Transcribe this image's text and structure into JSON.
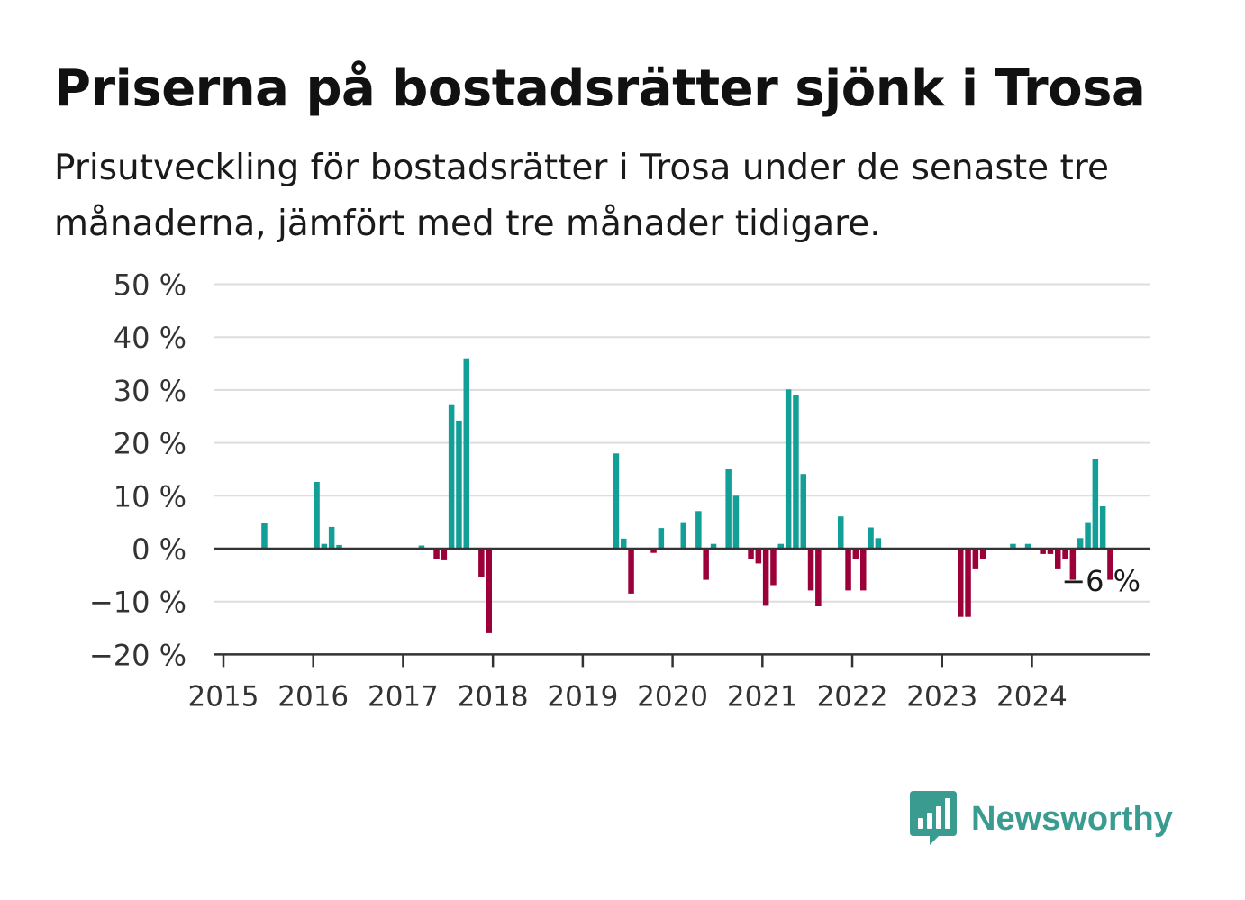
{
  "title": "Priserna på bostadsrätter sjönk i Trosa",
  "subtitle": "Prisutveckling för bostadsrätter i Trosa under de senaste tre månaderna, jämfört med tre månader tidigare.",
  "brand": {
    "name": "Newsworthy",
    "color": "#3a9c91",
    "icon": "bar-chart-speech-bubble-icon"
  },
  "colors": {
    "positive": "#119f98",
    "negative": "#9b0039",
    "grid": "#dddddd",
    "axis": "#333333"
  },
  "chart_data": {
    "type": "bar",
    "xlabel": "",
    "ylabel": "",
    "ylim": [
      -20,
      50
    ],
    "yticks": [
      -20,
      -10,
      0,
      10,
      20,
      30,
      40,
      50
    ],
    "ytick_labels": [
      "−20 %",
      "−10 %",
      "0 %",
      "10 %",
      "20 %",
      "30 %",
      "40 %",
      "50 %"
    ],
    "xticks": [
      "2015",
      "2016",
      "2017",
      "2018",
      "2019",
      "2020",
      "2021",
      "2022",
      "2023",
      "2024"
    ],
    "grid": true,
    "legend": "none",
    "x_start": "2015-01",
    "months": [
      "2015-01",
      "2015-02",
      "2015-03",
      "2015-04",
      "2015-05",
      "2015-06",
      "2015-07",
      "2015-08",
      "2015-09",
      "2015-10",
      "2015-11",
      "2015-12",
      "2016-01",
      "2016-02",
      "2016-03",
      "2016-04",
      "2016-05",
      "2016-06",
      "2016-07",
      "2016-08",
      "2016-09",
      "2016-10",
      "2016-11",
      "2016-12",
      "2017-01",
      "2017-02",
      "2017-03",
      "2017-04",
      "2017-05",
      "2017-06",
      "2017-07",
      "2017-08",
      "2017-09",
      "2017-10",
      "2017-11",
      "2017-12",
      "2018-01",
      "2018-02",
      "2018-03",
      "2018-04",
      "2018-05",
      "2018-06",
      "2018-07",
      "2018-08",
      "2018-09",
      "2018-10",
      "2018-11",
      "2018-12",
      "2019-01",
      "2019-02",
      "2019-03",
      "2019-04",
      "2019-05",
      "2019-06",
      "2019-07",
      "2019-08",
      "2019-09",
      "2019-10",
      "2019-11",
      "2019-12",
      "2020-01",
      "2020-02",
      "2020-03",
      "2020-04",
      "2020-05",
      "2020-06",
      "2020-07",
      "2020-08",
      "2020-09",
      "2020-10",
      "2020-11",
      "2020-12",
      "2021-01",
      "2021-02",
      "2021-03",
      "2021-04",
      "2021-05",
      "2021-06",
      "2021-07",
      "2021-08",
      "2021-09",
      "2021-10",
      "2021-11",
      "2021-12",
      "2022-01",
      "2022-02",
      "2022-03",
      "2022-04",
      "2022-05",
      "2022-06",
      "2022-07",
      "2022-08",
      "2022-09",
      "2022-10",
      "2022-11",
      "2022-12",
      "2023-01",
      "2023-02",
      "2023-03",
      "2023-04",
      "2023-05",
      "2023-06",
      "2023-07",
      "2023-08",
      "2023-09",
      "2023-10",
      "2023-11",
      "2023-12",
      "2024-01",
      "2024-02",
      "2024-03",
      "2024-04",
      "2024-05",
      "2024-06",
      "2024-07",
      "2024-08",
      "2024-09",
      "2024-10",
      "2024-11",
      "2024-12"
    ],
    "values": [
      0,
      0,
      0,
      0,
      0,
      4.8,
      0,
      0,
      0,
      0,
      0,
      0,
      12.6,
      0.9,
      4.1,
      0.7,
      0,
      0,
      0,
      0,
      0,
      0,
      0,
      0,
      0,
      0,
      0.6,
      0,
      -1.9,
      -2.2,
      27.3,
      24.2,
      36.0,
      0,
      -5.3,
      -16.0,
      0,
      0,
      0,
      0,
      0,
      0,
      0,
      0,
      0,
      0,
      0,
      0,
      0,
      0,
      0,
      0,
      18.0,
      1.9,
      -8.5,
      0,
      0,
      -0.8,
      3.9,
      0,
      0,
      5.0,
      0,
      7.1,
      -5.9,
      0.9,
      0,
      15.0,
      10.0,
      0,
      -1.9,
      -2.8,
      -10.8,
      -6.9,
      0.9,
      30.1,
      29.1,
      14.1,
      -7.9,
      -10.9,
      0,
      0,
      6.1,
      -7.9,
      -2.0,
      -7.9,
      4.0,
      2.0,
      0,
      0,
      0,
      0,
      0,
      0,
      0,
      0,
      0,
      0,
      -12.9,
      -12.9,
      -3.9,
      -1.9,
      0,
      0,
      0,
      0.9,
      0,
      0.9,
      0,
      -1.0,
      -1.0,
      -3.9,
      -1.9,
      -5.9,
      2.0,
      5.0,
      17.0,
      8.0,
      -5.9,
      0
    ],
    "annotations": [
      {
        "month": "2024-11",
        "value": -6,
        "text": "−6 %"
      }
    ]
  }
}
